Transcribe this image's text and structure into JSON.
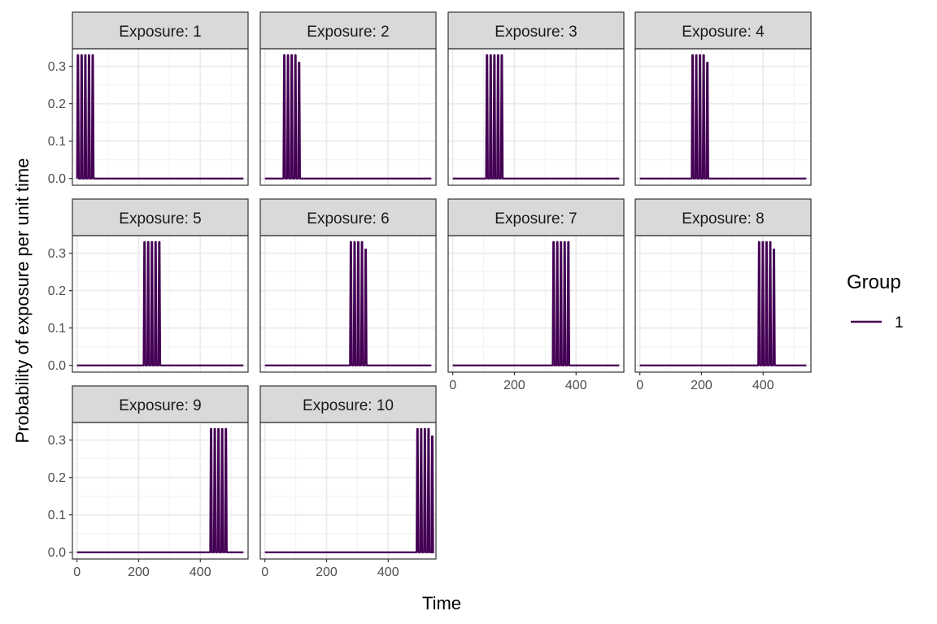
{
  "chart_data": {
    "type": "line",
    "xlabel": "Time",
    "ylabel": "Probability of exposure per unit time",
    "xlim": [
      -15,
      555
    ],
    "ylim": [
      -0.018,
      0.347
    ],
    "x_ticks": [
      0,
      200,
      400
    ],
    "y_ticks": [
      0.0,
      0.1,
      0.2,
      0.3
    ],
    "y_tick_labels": [
      "0.0",
      "0.1",
      "0.2",
      "0.3"
    ],
    "grid": true,
    "series_color": "#440154",
    "legend": {
      "title": "Group",
      "entries": [
        {
          "label": "1",
          "color": "#440154"
        }
      ],
      "placement": "right"
    },
    "pulse_peak": 0.33,
    "pulse_truncated_peak": 0.31,
    "x_end": 540,
    "panels": [
      {
        "label": "Exposure: 1",
        "pulses": [
          0,
          12,
          24,
          36,
          48
        ],
        "last_peak": 0.33
      },
      {
        "label": "Exposure: 2",
        "pulses": [
          60,
          72,
          84,
          96,
          108
        ],
        "last_peak": 0.31
      },
      {
        "label": "Exposure: 3",
        "pulses": [
          108,
          120,
          132,
          144,
          156
        ],
        "last_peak": 0.33
      },
      {
        "label": "Exposure: 4",
        "pulses": [
          168,
          180,
          192,
          204,
          216
        ],
        "last_peak": 0.31
      },
      {
        "label": "Exposure: 5",
        "pulses": [
          216,
          228,
          240,
          252,
          264
        ],
        "last_peak": 0.33
      },
      {
        "label": "Exposure: 6",
        "pulses": [
          276,
          288,
          300,
          312,
          324
        ],
        "last_peak": 0.31
      },
      {
        "label": "Exposure: 7",
        "pulses": [
          324,
          336,
          348,
          360,
          372
        ],
        "last_peak": 0.33
      },
      {
        "label": "Exposure: 8",
        "pulses": [
          384,
          396,
          408,
          420,
          432
        ],
        "last_peak": 0.31
      },
      {
        "label": "Exposure: 9",
        "pulses": [
          432,
          444,
          456,
          468,
          480
        ],
        "last_peak": 0.33
      },
      {
        "label": "Exposure: 10",
        "pulses": [
          492,
          504,
          516,
          528,
          540
        ],
        "last_peak": 0.31
      }
    ]
  }
}
